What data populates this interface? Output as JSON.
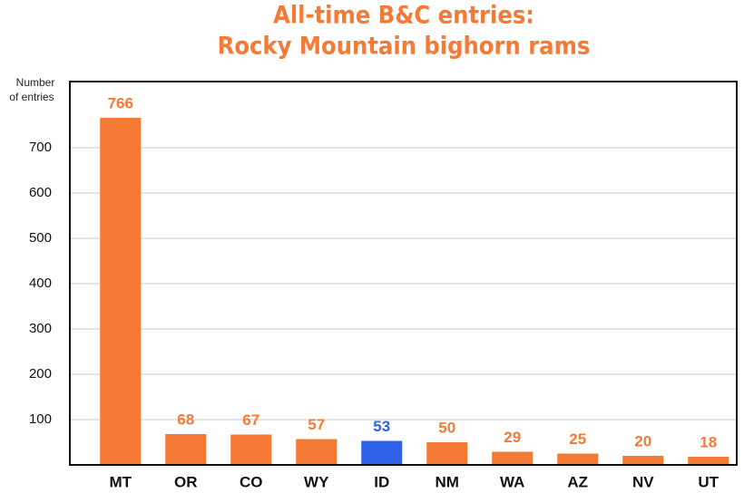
{
  "chart_data": {
    "type": "bar",
    "title": [
      "All-time B&C entries:",
      "Rocky Mountain bighorn rams"
    ],
    "y_label": [
      "Number",
      "of entries"
    ],
    "categories": [
      "MT",
      "OR",
      "CO",
      "WY",
      "ID",
      "NM",
      "WA",
      "AZ",
      "NV",
      "UT"
    ],
    "values": [
      766,
      68,
      67,
      57,
      53,
      50,
      29,
      25,
      20,
      18
    ],
    "colors": [
      "#f47a35",
      "#f47a35",
      "#f47a35",
      "#f47a35",
      "#2f62e8",
      "#f47a35",
      "#f47a35",
      "#f47a35",
      "#f47a35",
      "#f47a35"
    ],
    "ylim": [
      0,
      846
    ],
    "yticks": [
      100,
      200,
      300,
      400,
      500,
      600,
      700
    ],
    "grid": true
  }
}
